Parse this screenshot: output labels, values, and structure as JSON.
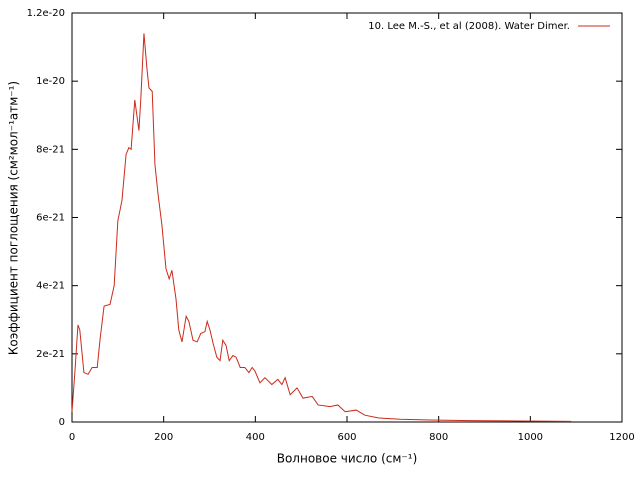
{
  "chart_data": {
    "type": "line",
    "xlabel": "Волновое число (см⁻¹)",
    "ylabel": "Коэффициент поглощения (см²мол⁻¹атм⁻¹)",
    "xlim": [
      0,
      1200
    ],
    "xticks": [
      0,
      200,
      400,
      600,
      800,
      1000,
      1200
    ],
    "ylim": [
      0,
      1.2e-20
    ],
    "yticks": [
      0,
      {
        "value": 2e-21,
        "label": "2e-21"
      },
      {
        "value": 4e-21,
        "label": "4e-21"
      },
      {
        "value": 6e-21,
        "label": "6e-21"
      },
      {
        "value": 8e-21,
        "label": "8e-21"
      },
      {
        "value": 1e-20,
        "label": "1e-20"
      },
      {
        "value": 1.2e-20,
        "label": "1.2e-20"
      }
    ],
    "legend": "top-right",
    "series": [
      {
        "name": "10. Lee M.-S., et al (2008). Water Dimer.",
        "color": "#cc2a1a",
        "x": [
          0,
          6.5,
          13,
          17,
          26,
          35,
          44,
          55,
          61,
          70,
          83,
          92,
          100,
          109,
          118,
          124,
          129,
          137,
          146,
          150,
          157,
          164,
          168,
          175,
          181,
          188,
          196,
          205,
          212,
          218,
          227,
          233,
          240,
          249,
          255,
          264,
          273,
          281,
          290,
          295,
          301,
          308,
          316,
          323,
          329,
          336,
          343,
          351,
          358,
          367,
          377,
          386,
          393,
          399,
          410,
          421,
          436,
          449,
          458,
          465,
          476,
          491,
          504,
          524,
          537,
          563,
          580,
          596,
          620,
          639,
          668,
          716,
          781,
          868,
          977,
          1089
        ],
        "values": [
          3e-22,
          1.5e-21,
          2.85e-21,
          2.7e-21,
          1.45e-21,
          1.4e-21,
          1.6e-21,
          1.6e-21,
          2.4e-21,
          3.4e-21,
          3.45e-21,
          4e-21,
          5.9e-21,
          6.5e-21,
          7.85e-21,
          8.05e-21,
          8e-21,
          9.45e-21,
          8.55e-21,
          9.45e-21,
          1.14e-20,
          1.03e-20,
          9.8e-21,
          9.7e-21,
          7.55e-21,
          6.65e-21,
          5.8e-21,
          4.5e-21,
          4.2e-21,
          4.45e-21,
          3.6e-21,
          2.7e-21,
          2.35e-21,
          3.1e-21,
          2.95e-21,
          2.4e-21,
          2.35e-21,
          2.6e-21,
          2.65e-21,
          2.95e-21,
          2.7e-21,
          2.3e-21,
          1.9e-21,
          1.8e-21,
          2.4e-21,
          2.25e-21,
          1.8e-21,
          1.95e-21,
          1.9e-21,
          1.6e-21,
          1.6e-21,
          1.45e-21,
          1.6e-21,
          1.5e-21,
          1.15e-21,
          1.3e-21,
          1.1e-21,
          1.25e-21,
          1.1e-21,
          1.3e-21,
          8e-22,
          1e-21,
          7e-22,
          7.5e-22,
          5e-22,
          4.5e-22,
          5e-22,
          3e-22,
          3.5e-22,
          2e-22,
          1.2e-22,
          8e-23,
          6e-23,
          4e-23,
          3e-23,
          2e-23
        ]
      }
    ]
  }
}
